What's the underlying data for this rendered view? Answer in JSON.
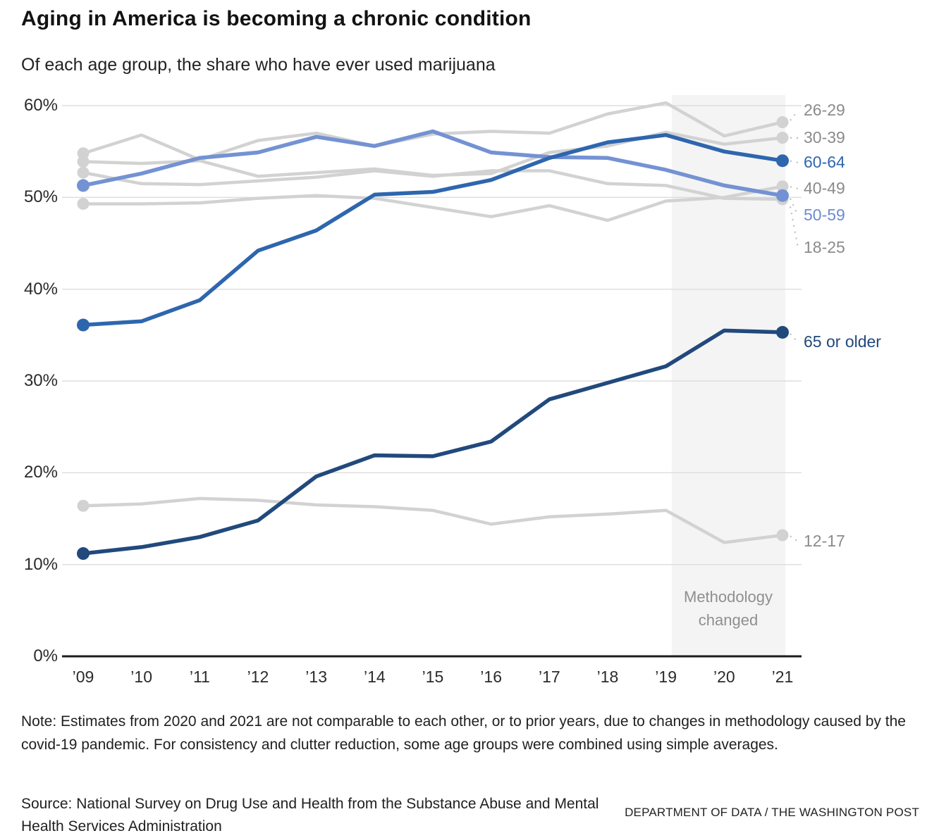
{
  "header": {
    "title": "Aging in America is becoming a chronic condition",
    "subtitle": "Of each age group, the share who have ever used marijuana"
  },
  "chart_data": {
    "type": "line",
    "x": [
      2009,
      2010,
      2011,
      2012,
      2013,
      2014,
      2015,
      2016,
      2017,
      2018,
      2019,
      2020,
      2021
    ],
    "x_tick_labels": [
      "’09",
      "’10",
      "’11",
      "’12",
      "’13",
      "’14",
      "’15",
      "’16",
      "’17",
      "’18",
      "’19",
      "’20",
      "’21"
    ],
    "ylim": [
      0,
      60
    ],
    "yticks": [
      0,
      10,
      20,
      30,
      40,
      50,
      60
    ],
    "ytick_labels": [
      "0%",
      "10%",
      "20%",
      "30%",
      "40%",
      "50%",
      "60%"
    ],
    "grid": "horizontal",
    "legend_position": "right-edge-labels",
    "annotation_band": {
      "lines": [
        "Methodology",
        "changed"
      ],
      "x_start": 2019.1,
      "x_end": 2021.05,
      "color": "#f4f4f4",
      "text_color": "#8f8f8f"
    },
    "series": [
      {
        "name": "26-29",
        "color": "#d2d2d2",
        "label_color": "#8b8b8b",
        "emphasis": false,
        "values": [
          54.8,
          56.8,
          54.1,
          56.2,
          57.0,
          55.6,
          56.9,
          57.2,
          57.0,
          59.1,
          60.3,
          56.7,
          58.2
        ]
      },
      {
        "name": "30-39",
        "color": "#d2d2d2",
        "label_color": "#8b8b8b",
        "emphasis": false,
        "values": [
          53.9,
          53.7,
          54.0,
          52.3,
          52.7,
          53.1,
          52.4,
          52.6,
          54.9,
          55.6,
          57.1,
          55.8,
          56.5
        ]
      },
      {
        "name": "18-25",
        "color": "#d2d2d2",
        "label_color": "#8b8b8b",
        "emphasis": false,
        "values": [
          52.7,
          51.5,
          51.4,
          51.8,
          52.2,
          52.9,
          52.3,
          52.9,
          52.9,
          51.5,
          51.3,
          49.9,
          49.8
        ]
      },
      {
        "name": "40-49",
        "color": "#d2d2d2",
        "label_color": "#8b8b8b",
        "emphasis": false,
        "values": [
          49.3,
          49.3,
          49.4,
          49.9,
          50.2,
          49.9,
          48.9,
          47.9,
          49.1,
          47.5,
          49.6,
          50.0,
          51.2
        ]
      },
      {
        "name": "12-17",
        "color": "#d2d2d2",
        "label_color": "#8b8b8b",
        "emphasis": false,
        "values": [
          16.4,
          16.6,
          17.2,
          17.0,
          16.5,
          16.3,
          15.9,
          14.4,
          15.2,
          15.5,
          15.9,
          12.4,
          13.2
        ]
      },
      {
        "name": "50-59",
        "color": "#7492d3",
        "label_color": "#6d8bd0",
        "emphasis": true,
        "values": [
          51.3,
          52.6,
          54.3,
          54.9,
          56.6,
          55.6,
          57.2,
          54.9,
          54.4,
          54.3,
          53.0,
          51.3,
          50.2
        ]
      },
      {
        "name": "60-64",
        "color": "#2e66ae",
        "label_color": "#2e66ae",
        "emphasis": true,
        "values": [
          36.1,
          36.5,
          38.8,
          44.2,
          46.4,
          50.3,
          50.6,
          51.9,
          54.3,
          56.0,
          56.8,
          55.0,
          54.0
        ]
      },
      {
        "name": "65 or older",
        "color": "#21497c",
        "label_color": "#21497c",
        "emphasis": true,
        "values": [
          11.2,
          11.9,
          13.0,
          14.8,
          19.6,
          21.9,
          21.8,
          23.4,
          28.0,
          29.8,
          31.6,
          35.5,
          35.3
        ]
      }
    ]
  },
  "footer": {
    "note": "Note: Estimates from 2020 and 2021 are not comparable to each other, or to prior years, due to changes in methodology caused by the covid-19 pandemic. For consistency and clutter reduction, some age groups were combined using simple averages.",
    "source": "Source: National Survey on Drug Use and Health from the Substance Abuse and Mental Health Services Administration",
    "credit": "DEPARTMENT OF DATA / THE WASHINGTON POST"
  }
}
